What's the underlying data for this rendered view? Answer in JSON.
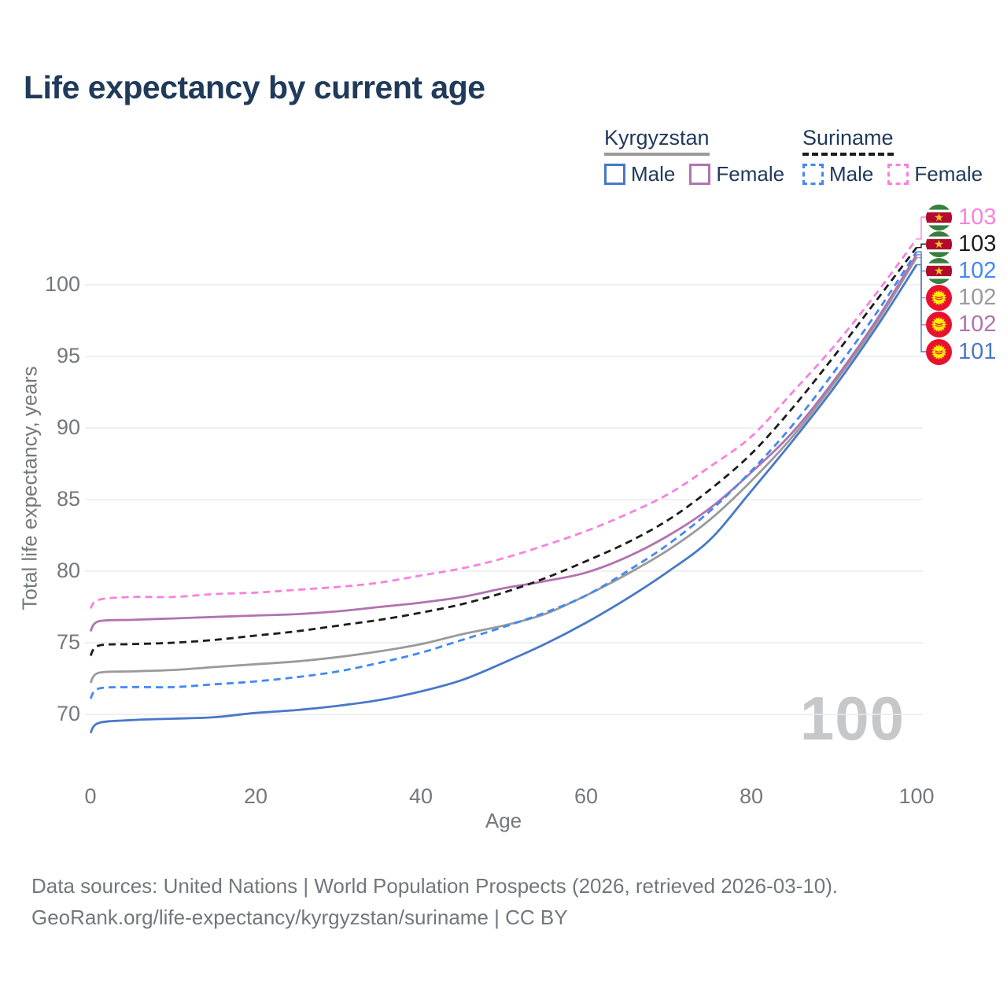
{
  "title": "Life expectancy by current age",
  "watermark": "100",
  "legend": {
    "groups": [
      {
        "country": "Kyrgyzstan",
        "line_style": "solid",
        "line_color": "#9a9a9a",
        "items": [
          {
            "label": "Male",
            "color": "#4878c8",
            "dashed": false
          },
          {
            "label": "Female",
            "color": "#b173ae",
            "dashed": false
          }
        ]
      },
      {
        "country": "Suriname",
        "line_style": "dashed",
        "line_color": "#1c1c1c",
        "items": [
          {
            "label": "Male",
            "color": "#4189f2",
            "dashed": true
          },
          {
            "label": "Female",
            "color": "#fa80de",
            "dashed": true
          }
        ]
      }
    ]
  },
  "footer": {
    "line1": "Data sources: United Nations | World Population Prospects (2026, retrieved 2026-03-10).",
    "line2": "GeoRank.org/life-expectancy/kyrgyzstan/suriname | CC BY"
  },
  "chart_data": {
    "type": "line",
    "title": "Life expectancy by current age",
    "xlabel": "Age",
    "ylabel": "Total life expectancy, years",
    "xlim": [
      0,
      100
    ],
    "ylim": [
      68,
      104
    ],
    "xticks": [
      0,
      20,
      40,
      60,
      80,
      100
    ],
    "yticks": [
      70,
      75,
      80,
      85,
      90,
      95,
      100
    ],
    "grid": "horizontal-only",
    "legend_position": "top-right",
    "x": [
      0,
      1,
      5,
      10,
      15,
      20,
      25,
      30,
      35,
      40,
      45,
      50,
      55,
      60,
      65,
      70,
      75,
      80,
      85,
      90,
      95,
      100
    ],
    "series": [
      {
        "id": "kyrgyzstan-total",
        "name": "Kyrgyzstan",
        "country": "Kyrgyzstan",
        "sex": "Total",
        "color": "#9a9a9a",
        "dashed": false,
        "flag": "kyrgyzstan",
        "row": 3,
        "end_label": "102",
        "end_label_color": "#9a9a9a",
        "values": [
          72.2,
          72.9,
          73.0,
          73.1,
          73.3,
          73.5,
          73.7,
          74.0,
          74.4,
          74.9,
          75.6,
          76.2,
          77.0,
          78.3,
          79.8,
          81.5,
          83.6,
          86.3,
          89.4,
          93.1,
          97.2,
          101.9
        ]
      },
      {
        "id": "kyrgyzstan-female",
        "name": "Kyrgyzstan Female",
        "country": "Kyrgyzstan",
        "sex": "Female",
        "color": "#b173ae",
        "dashed": false,
        "flag": "kyrgyzstan",
        "row": 4,
        "end_label": "102",
        "end_label_color": "#b173ae",
        "values": [
          75.8,
          76.5,
          76.6,
          76.7,
          76.8,
          76.9,
          77.0,
          77.2,
          77.5,
          77.8,
          78.2,
          78.8,
          79.3,
          79.9,
          81.0,
          82.5,
          84.4,
          86.9,
          89.7,
          93.3,
          97.4,
          102.1
        ]
      },
      {
        "id": "kyrgyzstan-male",
        "name": "Kyrgyzstan Male",
        "country": "Kyrgyzstan",
        "sex": "Male",
        "color": "#4878c8",
        "dashed": false,
        "flag": "kyrgyzstan",
        "row": 5,
        "end_label": "101",
        "end_label_color": "#4878c8",
        "values": [
          68.7,
          69.4,
          69.6,
          69.7,
          69.8,
          70.1,
          70.3,
          70.6,
          71.0,
          71.6,
          72.4,
          73.6,
          74.9,
          76.4,
          78.1,
          80.0,
          82.2,
          85.6,
          89.1,
          92.8,
          96.9,
          101.4
        ]
      },
      {
        "id": "suriname-total",
        "name": "Suriname",
        "country": "Suriname",
        "sex": "Total",
        "color": "#1c1c1c",
        "dashed": true,
        "flag": "suriname",
        "row": 1,
        "end_label": "103",
        "end_label_color": "#1c1c1c",
        "values": [
          74.1,
          74.8,
          74.9,
          75.0,
          75.2,
          75.5,
          75.8,
          76.2,
          76.6,
          77.1,
          77.7,
          78.5,
          79.5,
          80.7,
          82.0,
          83.6,
          85.7,
          88.2,
          91.4,
          95.0,
          98.8,
          102.6
        ]
      },
      {
        "id": "suriname-male",
        "name": "Suriname Male",
        "country": "Suriname",
        "sex": "Male",
        "color": "#4189f2",
        "dashed": true,
        "flag": "suriname",
        "row": 2,
        "end_label": "102",
        "end_label_color": "#4189f2",
        "values": [
          71.1,
          71.8,
          71.9,
          71.9,
          72.1,
          72.3,
          72.6,
          73.0,
          73.6,
          74.3,
          75.2,
          76.1,
          77.1,
          78.3,
          80.0,
          81.9,
          84.2,
          87.0,
          90.2,
          93.9,
          97.9,
          102.3
        ]
      },
      {
        "id": "suriname-female",
        "name": "Suriname Female",
        "country": "Suriname",
        "sex": "Female",
        "color": "#fa80de",
        "dashed": true,
        "flag": "suriname",
        "row": 0,
        "end_label": "103",
        "end_label_color": "#fa80de",
        "values": [
          77.4,
          78.0,
          78.2,
          78.2,
          78.4,
          78.5,
          78.7,
          78.9,
          79.2,
          79.7,
          80.2,
          80.9,
          81.8,
          82.8,
          84.0,
          85.4,
          87.3,
          89.4,
          92.5,
          95.7,
          99.3,
          103.2
        ]
      }
    ]
  }
}
